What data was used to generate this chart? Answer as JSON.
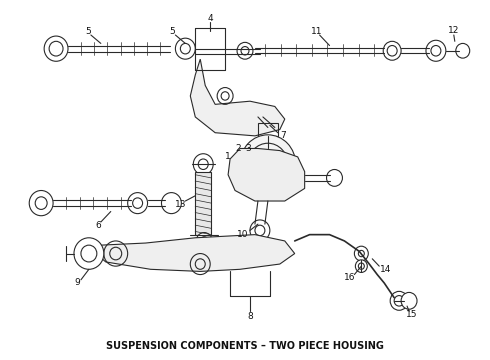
{
  "caption": "SUSPENSION COMPONENTS – TWO PIECE HOUSING",
  "background_color": "#ffffff",
  "caption_fontsize": 7.0,
  "caption_color": "#111111",
  "line_color": "#2a2a2a",
  "label_fontsize": 6.5,
  "fig_width": 4.9,
  "fig_height": 3.6,
  "dpi": 100
}
